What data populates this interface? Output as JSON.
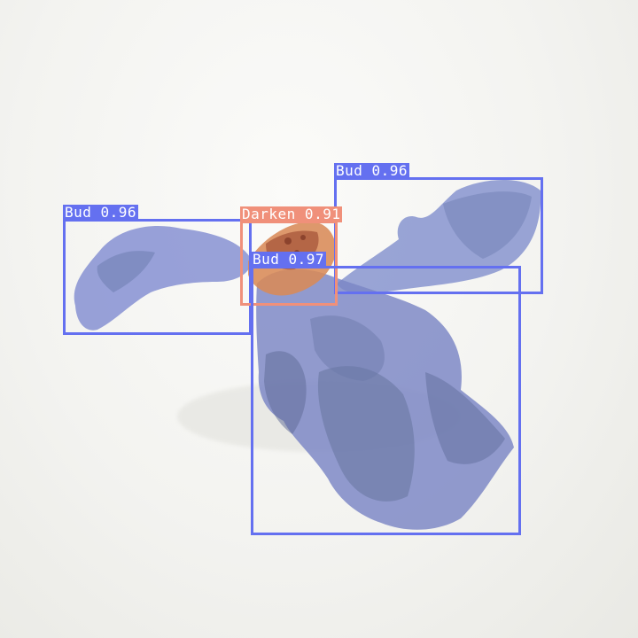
{
  "detections": [
    {
      "label": "Bud 0.96",
      "class": "Bud",
      "score": 0.96,
      "color": "#6470F0"
    },
    {
      "label": "Bud 0.96",
      "class": "Bud",
      "score": 0.96,
      "color": "#6470F0"
    },
    {
      "label": "Darken 0.91",
      "class": "Darken",
      "score": 0.91,
      "color": "#F0907A"
    },
    {
      "label": "Bud 0.97",
      "class": "Bud",
      "score": 0.97,
      "color": "#6470F0"
    }
  ],
  "colors": {
    "bud_box": "#6470F0",
    "darken_box": "#F0907A",
    "background": "#f3f3f0",
    "mask": "#7f8ff0"
  }
}
